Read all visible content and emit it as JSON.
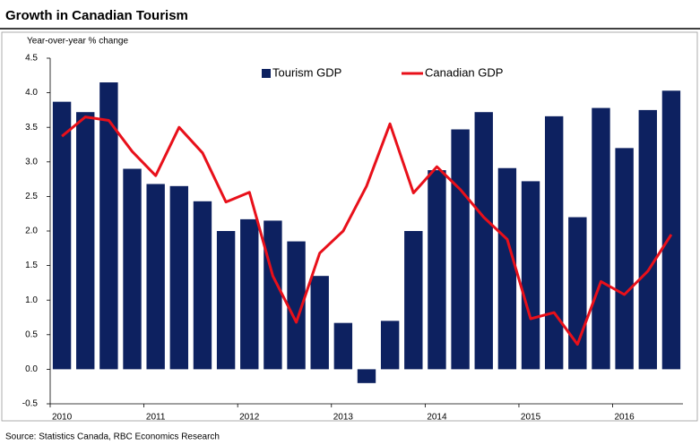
{
  "chart_data": {
    "type": "bar_line",
    "title": "Growth in Canadian Tourism",
    "y_label": "Year-over-year % change",
    "source": "Source: Statistics Canada, RBC Economics Research",
    "categories": [
      "2010",
      null,
      null,
      null,
      "2011",
      null,
      null,
      null,
      "2012",
      null,
      null,
      null,
      "2013",
      null,
      null,
      null,
      "2014",
      null,
      null,
      null,
      "2015",
      null,
      null,
      null,
      "2016",
      null,
      null
    ],
    "series": [
      {
        "name": "Tourism GDP",
        "type": "bar",
        "color": "#0d2160",
        "values": [
          3.87,
          3.72,
          4.15,
          2.9,
          2.68,
          2.65,
          2.43,
          2.0,
          2.17,
          2.15,
          1.85,
          1.35,
          0.67,
          -0.2,
          0.7,
          2.0,
          2.88,
          3.47,
          3.72,
          2.91,
          2.72,
          3.66,
          2.2,
          3.78,
          3.2,
          3.75,
          4.03
        ]
      },
      {
        "name": "Canadian GDP",
        "type": "line",
        "color": "#e8101a",
        "values": [
          3.37,
          3.65,
          3.6,
          3.15,
          2.8,
          3.5,
          3.13,
          2.42,
          2.56,
          1.35,
          0.68,
          1.68,
          2.0,
          2.65,
          3.55,
          2.55,
          2.93,
          2.6,
          2.2,
          1.88,
          0.73,
          0.82,
          0.36,
          1.27,
          1.08,
          1.42,
          1.95
        ]
      }
    ],
    "ylim": [
      -0.5,
      4.5
    ],
    "yticks": [
      -0.5,
      {
        "value": 0,
        "label": "0.0"
      },
      0.5,
      {
        "value": 1,
        "label": "1.0"
      },
      1.5,
      {
        "value": 2,
        "label": "2.0"
      },
      2.5,
      {
        "value": 3,
        "label": "3.0"
      },
      3.5,
      {
        "value": 4,
        "label": "4.0"
      },
      4.5
    ],
    "legend": "top",
    "grid": false
  }
}
